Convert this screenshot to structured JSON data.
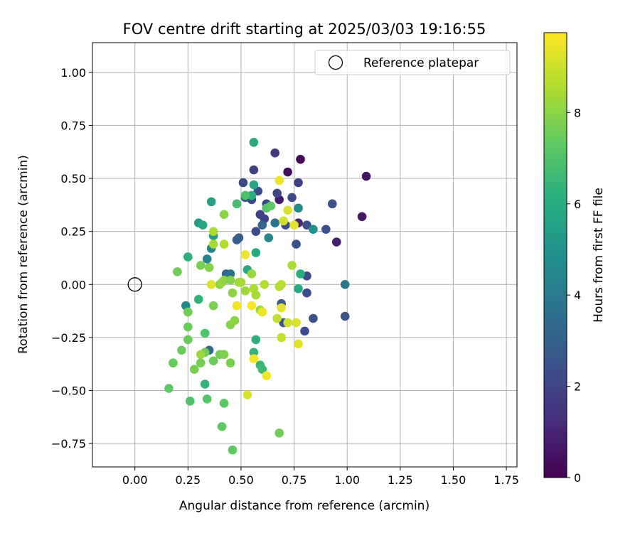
{
  "chart_data": {
    "type": "scatter",
    "title": "FOV centre drift starting at 2025/03/03 19:16:55",
    "xlabel": "Angular distance from reference (arcmin)",
    "ylabel": "Rotation from reference (arcmin)",
    "xlim": [
      -0.2,
      1.8
    ],
    "ylim": [
      -0.86,
      1.14
    ],
    "xticks": [
      "0.00",
      "0.25",
      "0.50",
      "0.75",
      "1.00",
      "1.25",
      "1.50",
      "1.75"
    ],
    "xtick_values": [
      0,
      0.25,
      0.5,
      0.75,
      1.0,
      1.25,
      1.5,
      1.75
    ],
    "yticks": [
      "1.00",
      "0.75",
      "0.50",
      "0.25",
      "0.00",
      "−0.25",
      "−0.50",
      "−0.75"
    ],
    "ytick_values": [
      1.0,
      0.75,
      0.5,
      0.25,
      0,
      -0.25,
      -0.5,
      -0.75
    ],
    "grid": true,
    "legend": {
      "position": "top-right",
      "label": "Reference platepar"
    },
    "reference": {
      "x": 0,
      "y": 0
    },
    "colorbar": {
      "label": "Hours from first FF file",
      "range": [
        0,
        9.75
      ],
      "ticks": [
        "0",
        "2",
        "4",
        "6",
        "8"
      ],
      "tick_values": [
        0,
        2,
        4,
        6,
        8
      ],
      "colormap": "viridis"
    },
    "points": [
      [
        0.78,
        0.59,
        0.2
      ],
      [
        0.72,
        0.53,
        0.4
      ],
      [
        1.09,
        0.51,
        0.5
      ],
      [
        1.07,
        0.32,
        0.6
      ],
      [
        0.95,
        0.2,
        0.8
      ],
      [
        0.68,
        0.4,
        0.7
      ],
      [
        0.77,
        0.29,
        1.0
      ],
      [
        0.66,
        0.62,
        1.6
      ],
      [
        0.56,
        0.54,
        1.9
      ],
      [
        0.51,
        0.48,
        2.1
      ],
      [
        0.58,
        0.44,
        2.2
      ],
      [
        0.55,
        0.4,
        2.1
      ],
      [
        0.62,
        0.38,
        2.0
      ],
      [
        0.59,
        0.33,
        1.8
      ],
      [
        0.61,
        0.31,
        1.9
      ],
      [
        0.57,
        0.25,
        2.2
      ],
      [
        0.52,
        0.41,
        2.3
      ],
      [
        0.67,
        0.43,
        2.0
      ],
      [
        0.74,
        0.41,
        2.1
      ],
      [
        0.77,
        0.48,
        1.9
      ],
      [
        0.71,
        0.28,
        2.2
      ],
      [
        0.81,
        0.28,
        2.3
      ],
      [
        0.9,
        0.26,
        2.4
      ],
      [
        0.93,
        0.38,
        2.5
      ],
      [
        0.76,
        0.19,
        2.4
      ],
      [
        0.81,
        0.04,
        2.2
      ],
      [
        0.81,
        -0.04,
        2.3
      ],
      [
        0.84,
        -0.16,
        2.4
      ],
      [
        0.8,
        -0.22,
        2.3
      ],
      [
        0.99,
        -0.15,
        2.5
      ],
      [
        0.69,
        -0.09,
        2.7
      ],
      [
        0.7,
        -0.18,
        2.6
      ],
      [
        0.49,
        0.22,
        2.8
      ],
      [
        0.48,
        0.21,
        3.0
      ],
      [
        0.43,
        0.05,
        3.3
      ],
      [
        0.45,
        0.05,
        3.6
      ],
      [
        0.35,
        -0.31,
        3.4
      ],
      [
        0.99,
        0.0,
        3.9
      ],
      [
        0.6,
        0.28,
        3.2
      ],
      [
        0.66,
        0.29,
        3.7
      ],
      [
        0.63,
        0.22,
        4.5
      ],
      [
        0.77,
        0.36,
        4.7
      ],
      [
        0.84,
        0.26,
        4.9
      ],
      [
        0.24,
        -0.1,
        4.6
      ],
      [
        0.36,
        0.17,
        4.4
      ],
      [
        0.34,
        0.12,
        4.3
      ],
      [
        0.3,
        0.29,
        5.3
      ],
      [
        0.32,
        0.28,
        5.7
      ],
      [
        0.37,
        0.23,
        5.2
      ],
      [
        0.36,
        0.39,
        5.5
      ],
      [
        0.56,
        0.67,
        5.9
      ],
      [
        0.56,
        0.47,
        5.8
      ],
      [
        0.57,
        0.15,
        6.0
      ],
      [
        0.53,
        0.07,
        5.9
      ],
      [
        0.55,
        0.42,
        6.1
      ],
      [
        0.78,
        0.05,
        6.1
      ],
      [
        0.77,
        -0.02,
        5.9
      ],
      [
        0.33,
        -0.47,
        6.3
      ],
      [
        0.3,
        -0.07,
        6.3
      ],
      [
        0.25,
        0.13,
        6.2
      ],
      [
        0.57,
        -0.26,
        6.2
      ],
      [
        0.56,
        -0.32,
        6.3
      ],
      [
        0.59,
        -0.38,
        6.5
      ],
      [
        0.6,
        -0.4,
        6.6
      ],
      [
        0.48,
        0.38,
        6.8
      ],
      [
        0.52,
        0.42,
        6.9
      ],
      [
        0.62,
        0.36,
        7.1
      ],
      [
        0.64,
        0.37,
        7.3
      ],
      [
        0.33,
        -0.23,
        7.0
      ],
      [
        0.34,
        -0.54,
        7.1
      ],
      [
        0.26,
        -0.55,
        7.0
      ],
      [
        0.42,
        -0.56,
        7.2
      ],
      [
        0.41,
        -0.67,
        7.3
      ],
      [
        0.46,
        -0.78,
        7.3
      ],
      [
        0.68,
        -0.7,
        7.6
      ],
      [
        0.16,
        -0.49,
        7.3
      ],
      [
        0.18,
        -0.37,
        7.4
      ],
      [
        0.22,
        -0.31,
        7.5
      ],
      [
        0.25,
        -0.2,
        7.5
      ],
      [
        0.25,
        -0.13,
        7.6
      ],
      [
        0.25,
        -0.26,
        7.5
      ],
      [
        0.28,
        -0.4,
        7.7
      ],
      [
        0.31,
        -0.37,
        7.7
      ],
      [
        0.33,
        -0.32,
        7.6
      ],
      [
        0.37,
        -0.36,
        7.5
      ],
      [
        0.4,
        -0.33,
        7.6
      ],
      [
        0.42,
        -0.33,
        7.8
      ],
      [
        0.45,
        -0.37,
        7.7
      ],
      [
        0.45,
        -0.19,
        7.9
      ],
      [
        0.47,
        -0.17,
        8.0
      ],
      [
        0.37,
        -0.1,
        7.8
      ],
      [
        0.31,
        0.09,
        7.7
      ],
      [
        0.35,
        0.08,
        7.9
      ],
      [
        0.2,
        0.06,
        7.6
      ],
      [
        0.4,
        0.0,
        8.0
      ],
      [
        0.41,
        0.01,
        8.2
      ],
      [
        0.42,
        0.02,
        8.1
      ],
      [
        0.45,
        0.02,
        7.9
      ],
      [
        0.46,
        -0.04,
        8.0
      ],
      [
        0.49,
        0.01,
        8.3
      ],
      [
        0.5,
        0.01,
        8.4
      ],
      [
        0.52,
        -0.03,
        8.3
      ],
      [
        0.55,
        0.05,
        8.2
      ],
      [
        0.56,
        -0.02,
        8.5
      ],
      [
        0.57,
        -0.05,
        8.4
      ],
      [
        0.59,
        -0.12,
        8.3
      ],
      [
        0.6,
        -0.13,
        8.4
      ],
      [
        0.61,
        0.0,
        8.6
      ],
      [
        0.37,
        0.19,
        8.4
      ],
      [
        0.37,
        0.25,
        8.5
      ],
      [
        0.42,
        0.19,
        8.6
      ],
      [
        0.42,
        0.33,
        8.0
      ],
      [
        0.31,
        -0.33,
        8.2
      ],
      [
        0.74,
        0.09,
        8.5
      ],
      [
        0.68,
        -0.01,
        8.6
      ],
      [
        0.69,
        0.0,
        8.7
      ],
      [
        0.67,
        -0.16,
        8.8
      ],
      [
        0.69,
        -0.25,
        8.9
      ],
      [
        0.72,
        -0.18,
        9.0
      ],
      [
        0.76,
        -0.18,
        9.2
      ],
      [
        0.77,
        -0.28,
        9.3
      ],
      [
        0.7,
        0.3,
        9.1
      ],
      [
        0.72,
        0.35,
        9.2
      ],
      [
        0.75,
        0.28,
        9.4
      ],
      [
        0.68,
        0.49,
        9.5
      ],
      [
        0.36,
        0.0,
        9.3
      ],
      [
        0.48,
        -0.1,
        9.6
      ],
      [
        0.52,
        0.14,
        9.5
      ],
      [
        0.53,
        -0.52,
        9.2
      ],
      [
        0.55,
        -0.1,
        9.7
      ],
      [
        0.56,
        -0.35,
        9.6
      ],
      [
        0.62,
        -0.43,
        9.6
      ],
      [
        0.6,
        -0.13,
        9.5
      ],
      [
        0.69,
        -0.11,
        9.4
      ]
    ]
  }
}
